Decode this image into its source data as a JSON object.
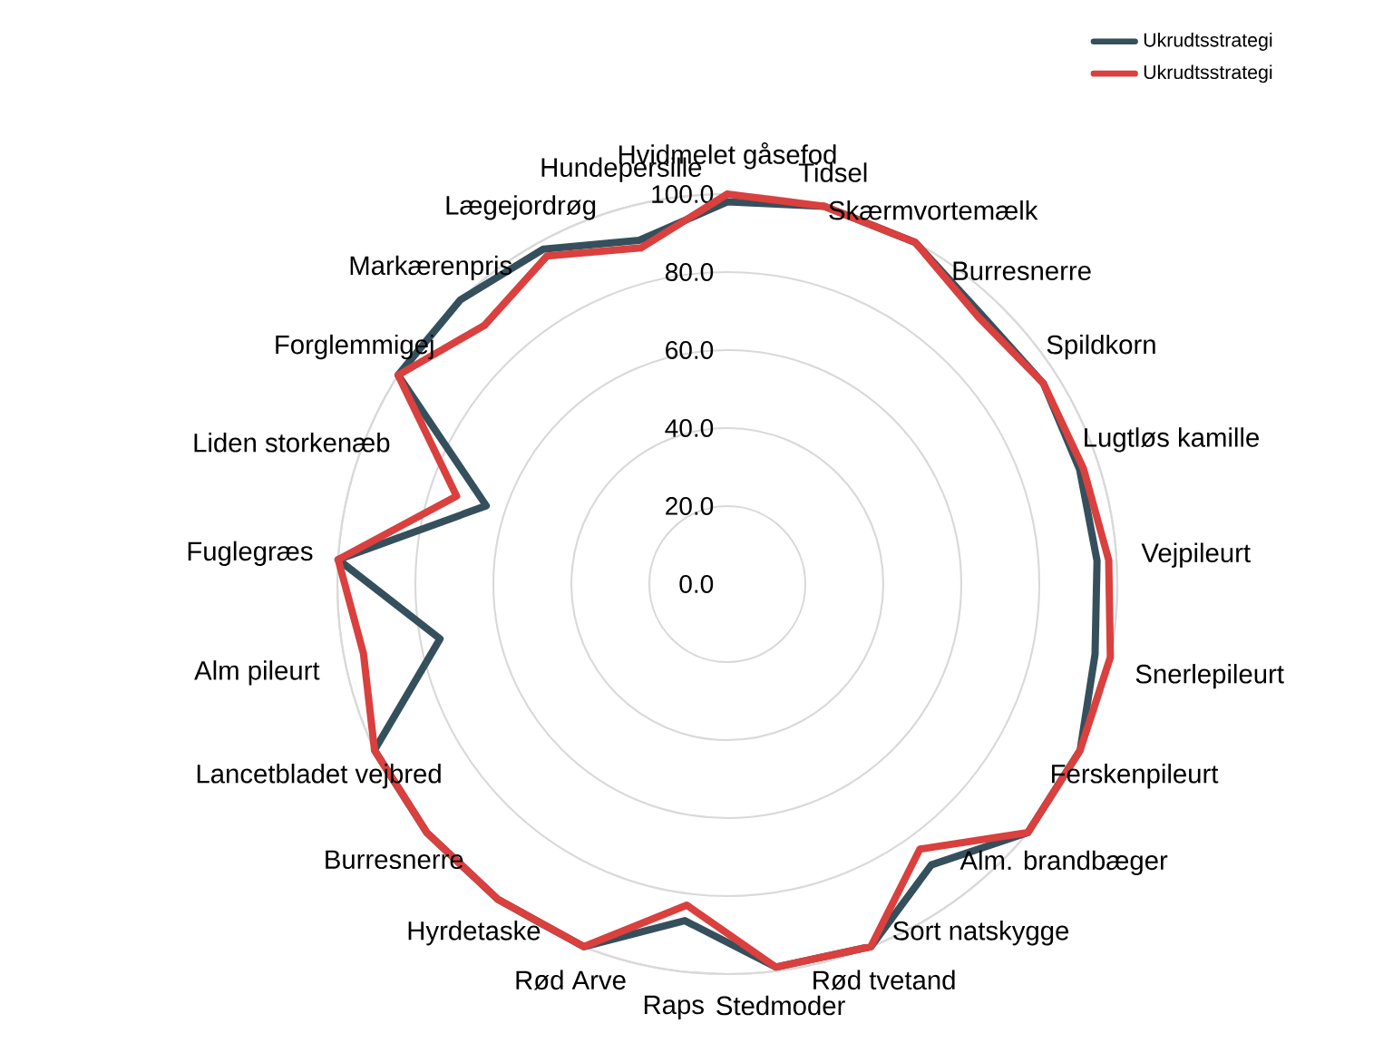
{
  "chart_data": {
    "type": "radar",
    "categories": [
      "Hvidmelet gåsefod",
      "Tidsel",
      "Skærmvortemælk",
      "Burresnerre",
      "Spildkorn",
      "Lugtløs kamille",
      "Vejpileurt",
      "Snerlepileurt",
      "Ferskenpileurt",
      "Alm. brandbæger",
      "Sort natskygge",
      "Rød tvetand",
      "Stedmoder",
      "Raps",
      "Rød Arve",
      "Hyrdetaske",
      "Burresnerre",
      "Lancetbladet vejbred",
      "Alm pileurt",
      "Fuglegræs",
      "Liden storkenæb",
      "Forglemmigej",
      "Markærenpris",
      "Lægejordrøg",
      "Hundepersille"
    ],
    "series": [
      {
        "name": "Ukrudtsstrategi",
        "color": "#35505c",
        "values": [
          98,
          100,
          100,
          95,
          96,
          95,
          95,
          96,
          100,
          100,
          89,
          100,
          99,
          87,
          100,
          100,
          100,
          100,
          75,
          100,
          65,
          100,
          100,
          98,
          91
        ]
      },
      {
        "name": "Ukrudtsstrategi",
        "color": "#d9403e",
        "values": [
          100,
          100,
          100,
          94,
          96,
          96,
          98,
          100,
          100,
          100,
          84,
          100,
          99,
          83,
          100,
          100,
          100,
          100,
          95,
          100,
          73,
          100,
          91,
          96,
          89
        ]
      }
    ],
    "ylim": [
      0,
      100
    ],
    "yticks": [
      {
        "value": 0,
        "label": "0.0"
      },
      {
        "value": 20,
        "label": "20.0"
      },
      {
        "value": 40,
        "label": "40.0"
      },
      {
        "value": 60,
        "label": "60.0"
      },
      {
        "value": 80,
        "label": "80.0"
      },
      {
        "value": 100,
        "label": "100.0"
      }
    ],
    "grid": true,
    "legend": "top right"
  }
}
